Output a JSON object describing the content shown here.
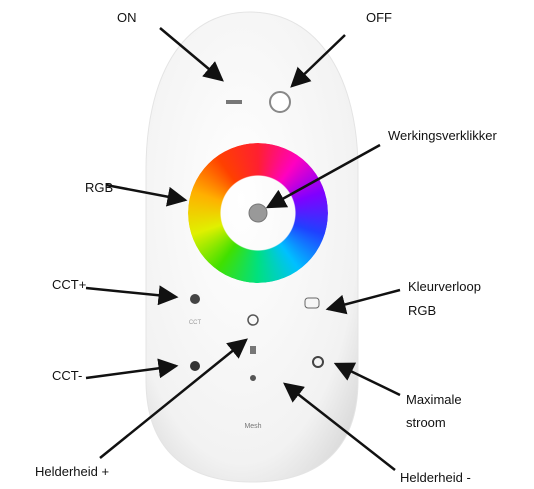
{
  "labels": {
    "on": "ON",
    "off": "OFF",
    "indicator": "Werkingsverklikker",
    "rgb": "RGB",
    "cct_plus": "CCT+",
    "cct_minus": "CCT-",
    "color_flow": [
      "Kleurverloop",
      "RGB"
    ],
    "max_current": [
      "Maximale",
      "stroom"
    ],
    "brightness_plus": "Helderheid +",
    "brightness_minus": "Helderheid -"
  },
  "remote": {
    "cct": "CCT",
    "mesh": "Mesh"
  }
}
